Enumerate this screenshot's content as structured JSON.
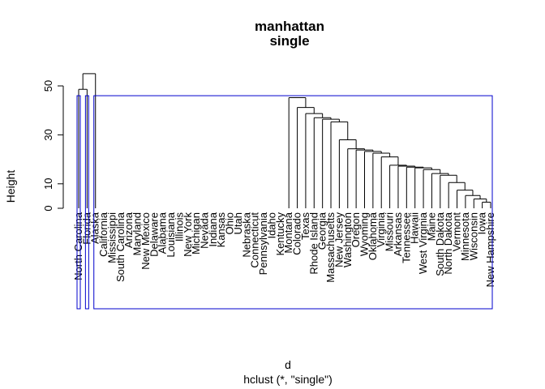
{
  "chart_data": {
    "type": "dendrogram",
    "title": "manhattan",
    "subtitle": "single",
    "xlabel": "d",
    "sub_caption": "hclust (*, \"single\")",
    "ylabel": "Height",
    "ylim": [
      0,
      55
    ],
    "yticks": [
      0,
      10,
      30,
      50
    ],
    "leaves": [
      "North Carolina",
      "Florida",
      "Alaska",
      "California",
      "Mississippi",
      "South Carolina",
      "Arizona",
      "Maryland",
      "New Mexico",
      "Delaware",
      "Alabama",
      "Louisiana",
      "Illinois",
      "New York",
      "Michigan",
      "Nevada",
      "Indiana",
      "Kansas",
      "Ohio",
      "Utah",
      "Nebraska",
      "Connecticut",
      "Pennsylvania",
      "Idaho",
      "Kentucky",
      "Montana",
      "Colorado",
      "Texas",
      "Rhode Island",
      "Georgia",
      "Massachusetts",
      "New Jersey",
      "Washington",
      "Oregon",
      "Wyoming",
      "Oklahoma",
      "Virginia",
      "Missouri",
      "Arkansas",
      "Tennessee",
      "Hawaii",
      "West Virginia",
      "Maine",
      "South Dakota",
      "North Dakota",
      "Vermont",
      "Minnesota",
      "Wisconsin",
      "Iowa",
      "New Hampshire"
    ],
    "merges": [
      [
        2,
        1,
        55.0
      ],
      [
        1,
        1,
        48.6
      ],
      [
        1,
        2,
        45.2
      ],
      [
        1,
        3,
        41.2
      ],
      [
        1,
        4,
        38.7
      ],
      [
        1,
        5,
        37.0
      ],
      [
        1,
        6,
        36.4
      ],
      [
        1,
        7,
        35.3
      ],
      [
        1,
        8,
        28.0
      ],
      [
        1,
        9,
        24.3
      ],
      [
        1,
        10,
        23.8
      ],
      [
        1,
        11,
        23.2
      ],
      [
        1,
        12,
        22.5
      ],
      [
        1,
        13,
        21.0
      ],
      [
        1,
        14,
        17.6
      ],
      [
        1,
        15,
        17.2
      ],
      [
        1,
        16,
        16.8
      ],
      [
        1,
        17,
        16.5
      ],
      [
        1,
        18,
        15.8
      ],
      [
        1,
        19,
        14.2
      ],
      [
        1,
        20,
        13.5
      ],
      [
        1,
        21,
        10.5
      ],
      [
        1,
        22,
        7.4
      ],
      [
        1,
        23,
        5.2
      ],
      [
        1,
        24,
        3.8
      ],
      [
        1,
        25,
        2.5
      ]
    ],
    "cut_height": 46,
    "cluster_boxes": [
      1,
      1,
      48
    ]
  }
}
